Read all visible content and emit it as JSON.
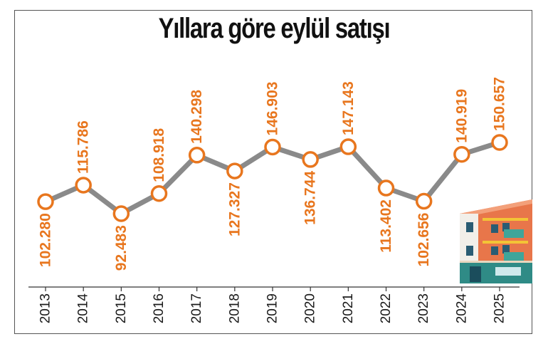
{
  "colors": {
    "line": "#8a8a8a",
    "accent": "#e8761e",
    "text": "#1a1a1a"
  },
  "chart_data": {
    "type": "line",
    "title": "Yıllara göre eylül satışı",
    "xlabel": "",
    "ylabel": "",
    "ylim": [
      85000,
      160000
    ],
    "grid": false,
    "categories": [
      "2013",
      "2014",
      "2015",
      "2016",
      "2017",
      "2018",
      "2019",
      "2020",
      "2021",
      "2022",
      "2023",
      "2024",
      "2025"
    ],
    "values": [
      102280,
      115786,
      92483,
      108918,
      140298,
      127327,
      146903,
      136744,
      147143,
      113402,
      102656,
      140919,
      150657
    ],
    "data_labels": [
      "102.280",
      "115.786",
      "92.483",
      "108.918",
      "140.298",
      "127.327",
      "146.903",
      "136.744",
      "147.143",
      "113.402",
      "102.656",
      "140.919",
      "150.657"
    ],
    "label_positions": [
      "below",
      "above",
      "below",
      "above",
      "above",
      "below",
      "above",
      "below",
      "above",
      "below",
      "below",
      "above",
      "above"
    ]
  },
  "decoration": {
    "icon": "apartment-building-icon"
  }
}
